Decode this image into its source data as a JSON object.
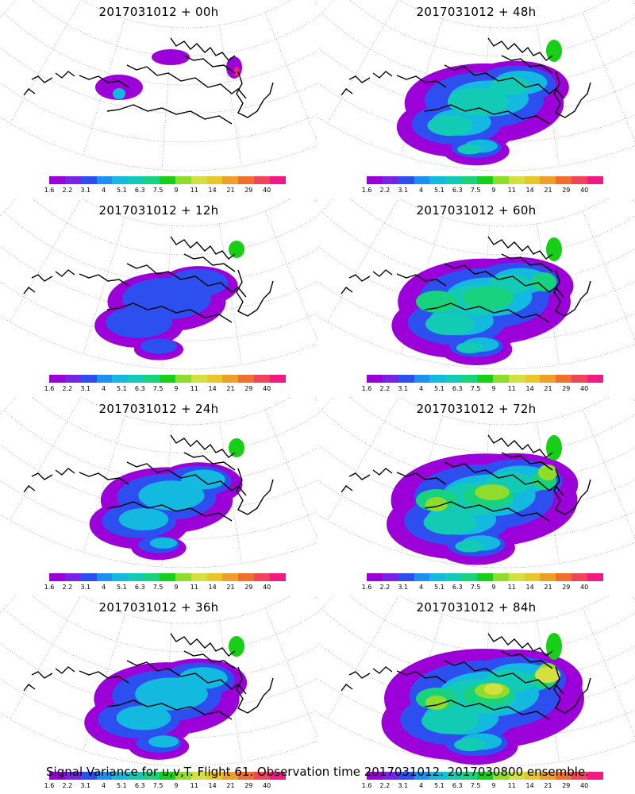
{
  "caption": "Signal Variance for u,v,T. Flight 61. Observation time 2017031012. 2017030800 ensemble.",
  "colorbar": {
    "colors": [
      "#9c00d8",
      "#7a22e6",
      "#2e4ff0",
      "#1e90f0",
      "#14b9e0",
      "#13cbb4",
      "#18d27e",
      "#18cf18",
      "#90dc2c",
      "#d4e040",
      "#e8c828",
      "#eca028",
      "#f06f2c",
      "#f0445a",
      "#f01a82"
    ],
    "labels": [
      "1.6",
      "2.2",
      "3.1",
      "4",
      "5.1",
      "6.3",
      "7.5",
      "9",
      "11",
      "14",
      "21",
      "29",
      "40"
    ]
  },
  "panels": [
    {
      "title": "2017031012 + 00h",
      "intensity": 0
    },
    {
      "title": "2017031012 + 48h",
      "intensity": 4
    },
    {
      "title": "2017031012 + 12h",
      "intensity": 1
    },
    {
      "title": "2017031012 + 60h",
      "intensity": 5
    },
    {
      "title": "2017031012 + 24h",
      "intensity": 2
    },
    {
      "title": "2017031012 + 72h",
      "intensity": 6
    },
    {
      "title": "2017031012 + 36h",
      "intensity": 3
    },
    {
      "title": "2017031012 + 84h",
      "intensity": 7
    }
  ]
}
